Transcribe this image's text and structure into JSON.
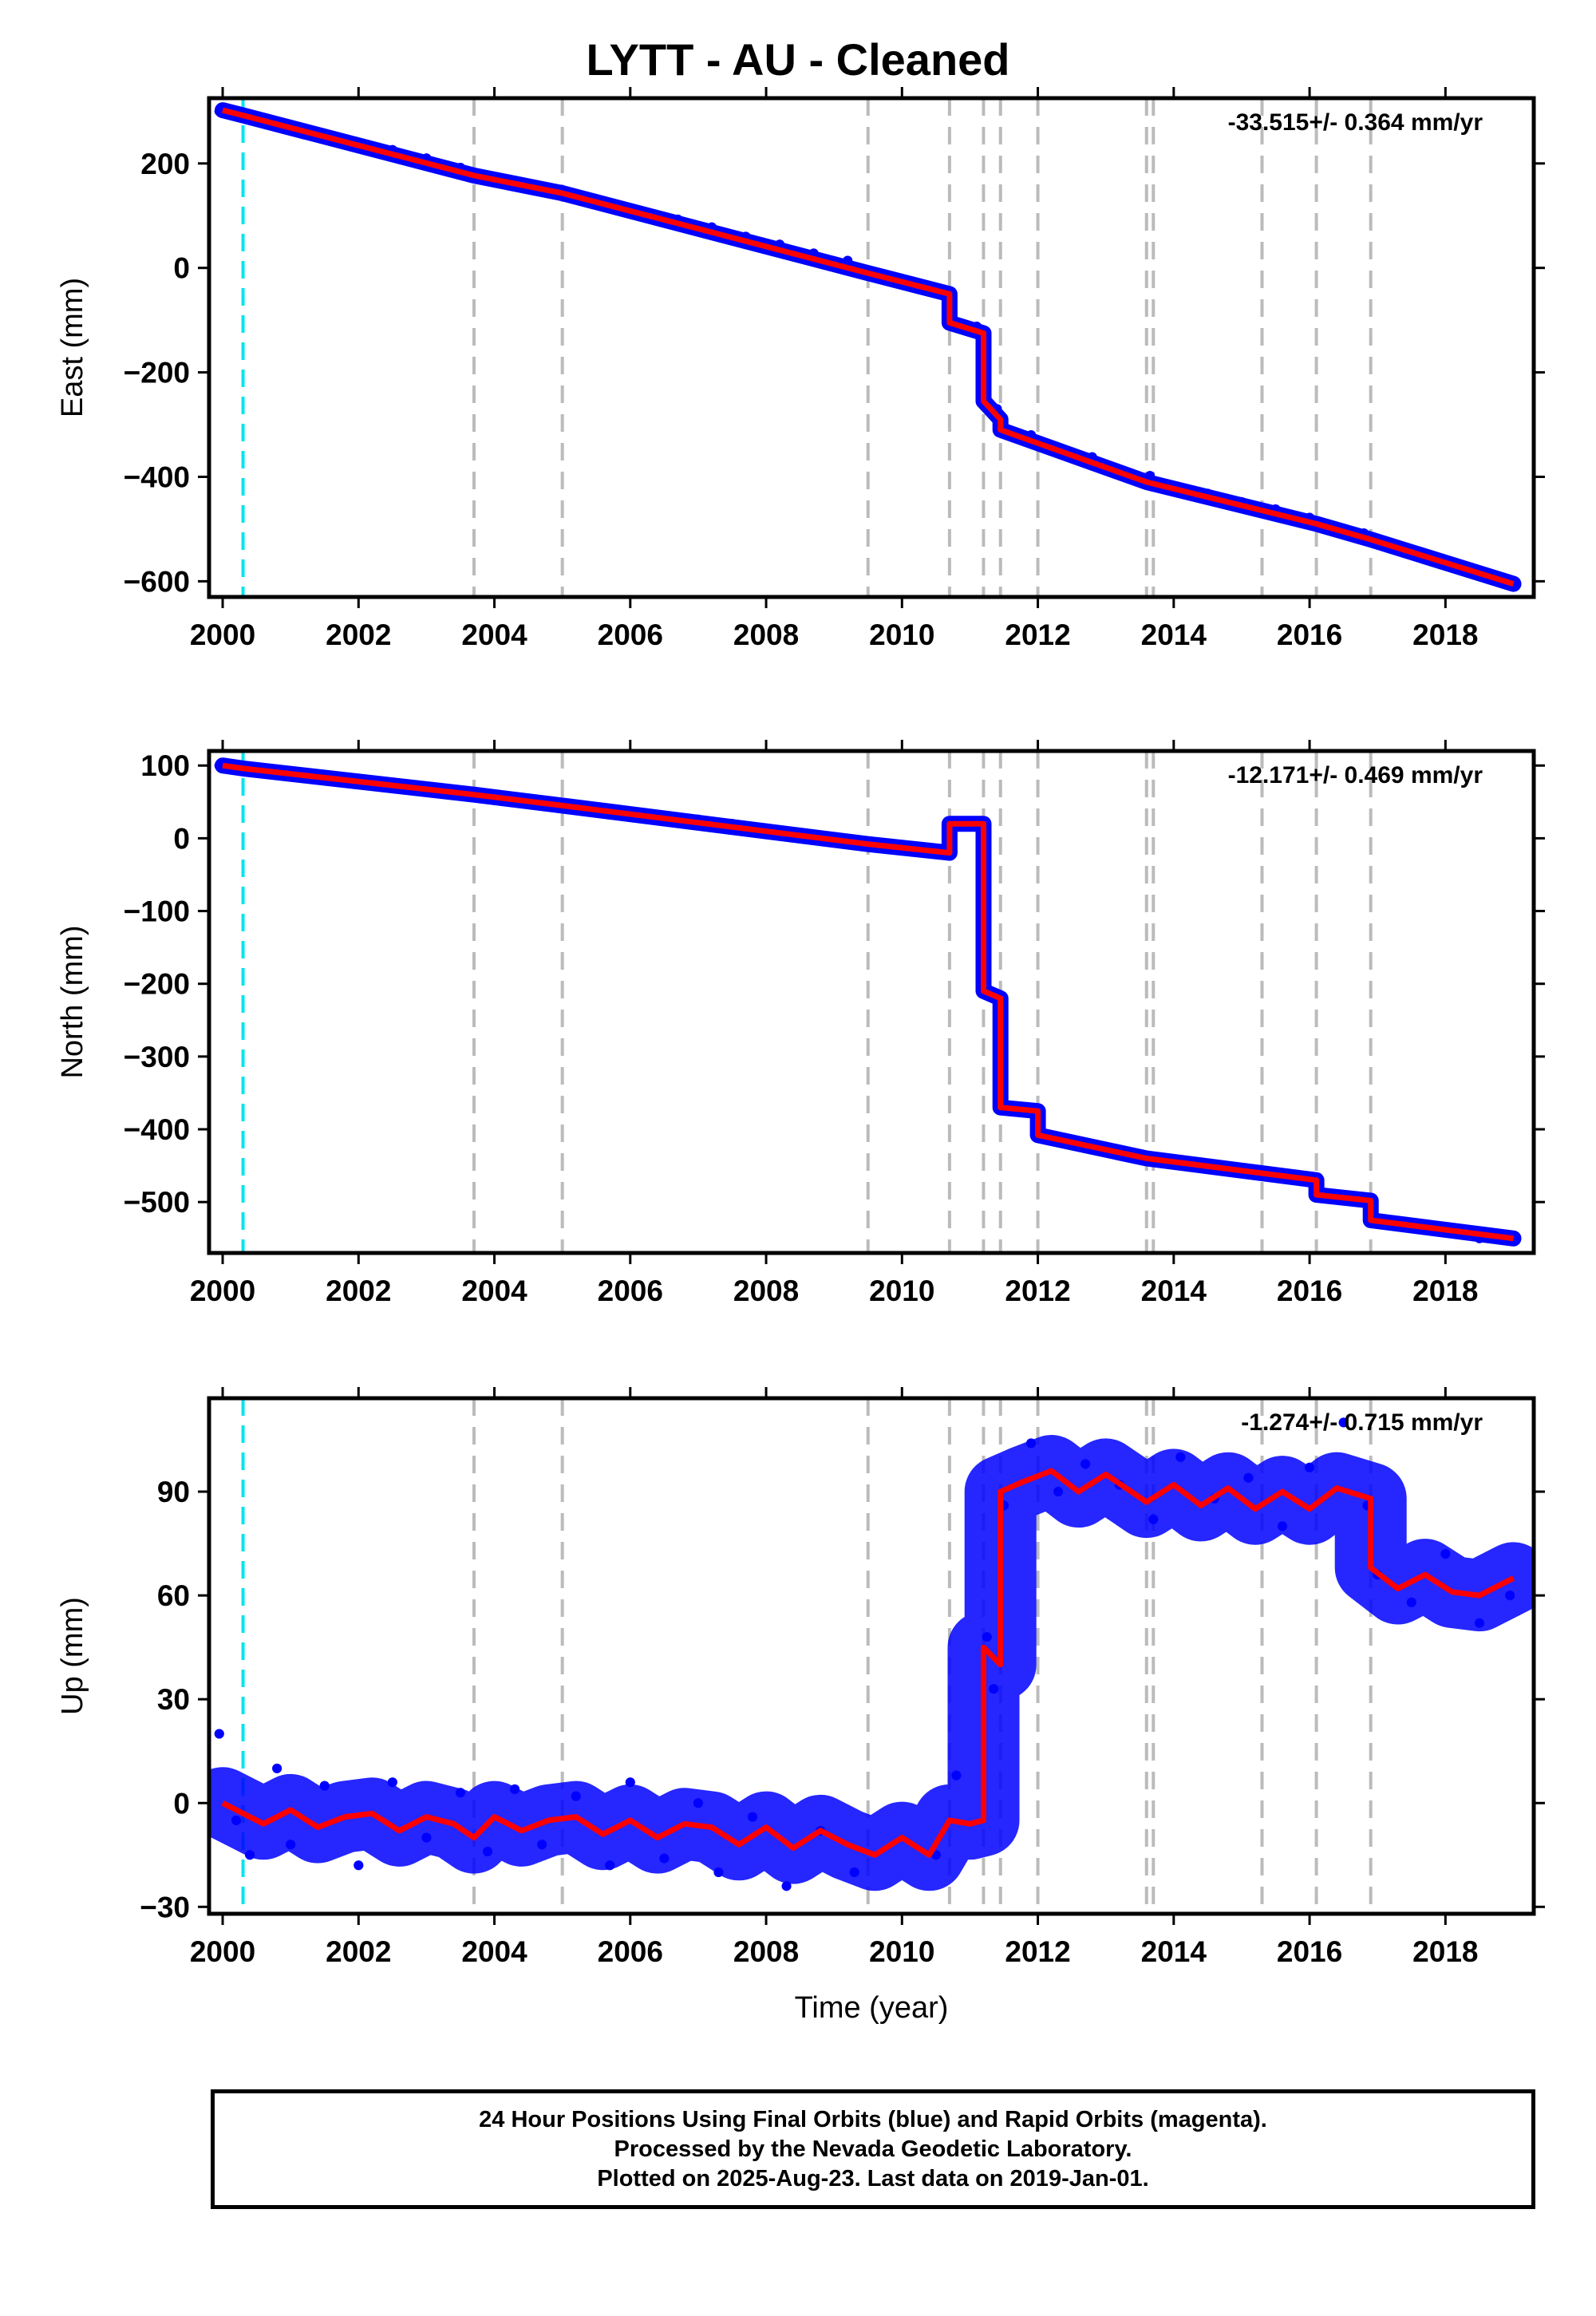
{
  "title": "LYTT  - AU - Cleaned",
  "colors": {
    "final_orbits": "#0000ff",
    "model": "#ff0000",
    "equipment_change": "#00e5ee",
    "event": "#bbbbbb"
  },
  "footer": {
    "line1": "24 Hour Positions Using Final Orbits (blue) and Rapid Orbits (magenta).",
    "line2": "Processed by the Nevada Geodetic Laboratory.",
    "line3": "Plotted on 2025-Aug-23. Last data on 2019-Jan-01."
  },
  "chart_data": [
    {
      "type": "scatter",
      "component": "east",
      "ylabel": "East (mm)",
      "xlabel": "",
      "xlim": [
        1999.8,
        2019.3
      ],
      "ylim": [
        -630,
        325
      ],
      "xticks": [
        2000,
        2002,
        2004,
        2006,
        2008,
        2010,
        2012,
        2014,
        2016,
        2018
      ],
      "yticks": [
        -600,
        -400,
        -200,
        0,
        200
      ],
      "rate": "-33.515+/- 0.364 mm/yr",
      "equipment_change_lines": [
        2000.3
      ],
      "event_lines": [
        2003.7,
        2005.0,
        2009.5,
        2010.7,
        2011.2,
        2011.45,
        2012.0,
        2013.6,
        2013.7,
        2015.3,
        2016.1,
        2016.9
      ],
      "model": {
        "x": [
          2000.0,
          2000.3,
          2003.7,
          2005.0,
          2009.5,
          2010.7,
          2010.7,
          2011.2,
          2011.2,
          2011.45,
          2011.45,
          2013.6,
          2016.1,
          2016.9,
          2019.0
        ],
        "y": [
          302,
          292,
          177,
          143,
          -10,
          -50,
          -105,
          -125,
          -255,
          -290,
          -310,
          -410,
          -490,
          -520,
          -605
        ]
      },
      "observations": {
        "x": [
          1999.95,
          2000.4,
          2001.0,
          2001.5,
          2002.0,
          2002.5,
          2003.0,
          2003.5,
          2003.8,
          2004.2,
          2004.7,
          2005.2,
          2005.7,
          2006.2,
          2006.7,
          2007.2,
          2007.7,
          2008.2,
          2008.7,
          2009.2,
          2009.6,
          2010.6,
          2010.75,
          2011.1,
          2011.25,
          2011.4,
          2011.5,
          2011.9,
          2012.3,
          2012.8,
          2013.65,
          2014.0,
          2014.5,
          2015.0,
          2015.5,
          2016.0,
          2016.3,
          2016.8,
          2017.0,
          2017.5,
          2018.0,
          2018.5,
          2018.98
        ],
        "y": [
          300,
          285,
          272,
          257,
          240,
          226,
          210,
          192,
          177,
          168,
          152,
          140,
          125,
          108,
          93,
          78,
          60,
          45,
          28,
          14,
          -8,
          -46,
          -102,
          -112,
          -258,
          -270,
          -308,
          -320,
          -345,
          -362,
          -398,
          -418,
          -432,
          -448,
          -462,
          -478,
          -492,
          -508,
          -526,
          -546,
          -562,
          -580,
          -602
        ]
      }
    },
    {
      "type": "scatter",
      "component": "north",
      "ylabel": "North (mm)",
      "xlabel": "",
      "xlim": [
        1999.8,
        2019.3
      ],
      "ylim": [
        -570,
        120
      ],
      "xticks": [
        2000,
        2002,
        2004,
        2006,
        2008,
        2010,
        2012,
        2014,
        2016,
        2018
      ],
      "yticks": [
        -500,
        -400,
        -300,
        -200,
        -100,
        0,
        100
      ],
      "rate": "-12.171+/- 0.469 mm/yr",
      "equipment_change_lines": [
        2000.3
      ],
      "event_lines": [
        2003.7,
        2005.0,
        2009.5,
        2010.7,
        2011.2,
        2011.45,
        2012.0,
        2013.6,
        2013.7,
        2015.3,
        2016.1,
        2016.9
      ],
      "model": {
        "x": [
          2000.0,
          2000.3,
          2003.7,
          2005.0,
          2009.5,
          2010.7,
          2010.7,
          2011.2,
          2011.2,
          2011.45,
          2011.45,
          2012.0,
          2012.0,
          2013.6,
          2016.1,
          2016.1,
          2016.9,
          2016.9,
          2019.0
        ],
        "y": [
          100,
          96,
          60,
          45,
          -8,
          -20,
          20,
          20,
          -210,
          -220,
          -370,
          -375,
          -408,
          -440,
          -470,
          -490,
          -498,
          -525,
          -550
        ]
      },
      "observations": {
        "x": [
          1999.95,
          2000.4,
          2001.0,
          2001.5,
          2002.0,
          2002.5,
          2003.0,
          2003.5,
          2004.0,
          2004.5,
          2005.0,
          2005.5,
          2006.0,
          2006.5,
          2007.0,
          2007.5,
          2007.9,
          2008.4,
          2008.9,
          2009.4,
          2010.6,
          2010.8,
          2011.0,
          2011.25,
          2011.4,
          2011.5,
          2011.9,
          2012.1,
          2012.5,
          2013.7,
          2014.0,
          2014.5,
          2015.0,
          2015.5,
          2016.0,
          2016.3,
          2016.8,
          2017.0,
          2017.5,
          2018.0,
          2018.5,
          2018.95
        ],
        "y": [
          100,
          95,
          90,
          85,
          79,
          74,
          70,
          64,
          58,
          52,
          46,
          40,
          35,
          31,
          26,
          20,
          14,
          8,
          2,
          -5,
          -22,
          20,
          18,
          -205,
          -215,
          -365,
          -372,
          -410,
          -420,
          -440,
          -445,
          -452,
          -458,
          -462,
          -468,
          -490,
          -496,
          -522,
          -534,
          -540,
          -550,
          -548
        ]
      }
    },
    {
      "type": "scatter",
      "component": "up",
      "ylabel": "Up (mm)",
      "xlabel": "Time (year)",
      "xlim": [
        1999.8,
        2019.3
      ],
      "ylim": [
        -32,
        117
      ],
      "xticks": [
        2000,
        2002,
        2004,
        2006,
        2008,
        2010,
        2012,
        2014,
        2016,
        2018
      ],
      "yticks": [
        -30,
        0,
        30,
        60,
        90
      ],
      "rate": "-1.274+/- 0.715 mm/yr",
      "equipment_change_lines": [
        2000.3
      ],
      "event_lines": [
        2003.7,
        2005.0,
        2009.5,
        2010.7,
        2011.2,
        2011.45,
        2012.0,
        2013.6,
        2013.7,
        2015.3,
        2016.1,
        2016.9
      ],
      "model": {
        "x": [
          2000.0,
          2000.3,
          2000.6,
          2001.0,
          2001.4,
          2001.8,
          2002.2,
          2002.6,
          2003.0,
          2003.4,
          2003.7,
          2004.0,
          2004.4,
          2004.8,
          2005.2,
          2005.6,
          2006.0,
          2006.4,
          2006.8,
          2007.2,
          2007.6,
          2008.0,
          2008.4,
          2008.8,
          2009.2,
          2009.6,
          2010.0,
          2010.4,
          2010.7,
          2011.0,
          2011.2,
          2011.2,
          2011.45,
          2011.45,
          2011.8,
          2012.2,
          2012.6,
          2013.0,
          2013.6,
          2014.0,
          2014.4,
          2014.8,
          2015.2,
          2015.6,
          2016.0,
          2016.4,
          2016.9,
          2016.9,
          2017.3,
          2017.7,
          2018.1,
          2018.5,
          2019.0
        ],
        "y": [
          0,
          -3,
          -6,
          -2,
          -7,
          -4,
          -3,
          -8,
          -4,
          -6,
          -10,
          -4,
          -8,
          -5,
          -4,
          -9,
          -5,
          -10,
          -6,
          -7,
          -12,
          -7,
          -13,
          -8,
          -12,
          -15,
          -10,
          -15,
          -5,
          -6,
          -5,
          45,
          40,
          90,
          93,
          96,
          90,
          95,
          87,
          92,
          86,
          91,
          85,
          90,
          85,
          91,
          88,
          68,
          62,
          66,
          61,
          60,
          65
        ]
      },
      "observations": {
        "x": [
          1999.95,
          2000.2,
          2000.4,
          2000.8,
          2001.0,
          2001.5,
          2002.0,
          2002.5,
          2003.0,
          2003.5,
          2003.9,
          2004.3,
          2004.7,
          2005.2,
          2005.7,
          2006.0,
          2006.5,
          2007.0,
          2007.3,
          2007.8,
          2008.3,
          2008.8,
          2009.3,
          2010.5,
          2010.8,
          2011.25,
          2011.35,
          2011.5,
          2011.9,
          2012.3,
          2012.7,
          2013.2,
          2013.7,
          2014.1,
          2014.6,
          2015.1,
          2015.6,
          2016.0,
          2016.5,
          2016.85,
          2017.0,
          2017.5,
          2018.0,
          2018.5,
          2018.95
        ],
        "y": [
          20,
          -5,
          -15,
          10,
          -12,
          5,
          -18,
          6,
          -10,
          3,
          -14,
          4,
          -12,
          2,
          -18,
          6,
          -16,
          0,
          -20,
          -4,
          -24,
          -8,
          -20,
          -15,
          8,
          48,
          33,
          86,
          104,
          90,
          98,
          92,
          82,
          100,
          88,
          94,
          80,
          97,
          110,
          86,
          66,
          58,
          72,
          52,
          60
        ]
      }
    }
  ]
}
